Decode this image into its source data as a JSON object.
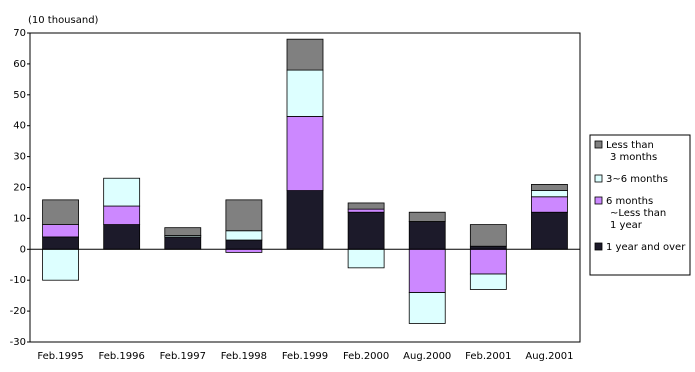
{
  "chart_data": {
    "type": "stacked-bar",
    "y_unit_label": "(10 thousand)",
    "categories": [
      "Feb.1995",
      "Feb.1996",
      "Feb.1997",
      "Feb.1998",
      "Feb.1999",
      "Feb.2000",
      "Aug.2000",
      "Feb.2001",
      "Aug.2001"
    ],
    "series": [
      {
        "name": "1 year and over",
        "color": "#1c1a2a",
        "values": [
          4,
          8,
          4,
          3,
          19,
          12,
          9,
          1,
          12
        ]
      },
      {
        "name": "6 months\n~Less than\n1 year",
        "color": "#cc88ff",
        "values": [
          4,
          6,
          0,
          -1,
          24,
          1,
          -14,
          -8,
          5
        ]
      },
      {
        "name": "3~6 months",
        "color": "#ddffff",
        "values": [
          -10,
          9,
          0.5,
          3,
          15,
          -6,
          -10,
          -5,
          2
        ]
      },
      {
        "name": "Less than\n3 months",
        "color": "#808080",
        "values": [
          8,
          0,
          2.5,
          10,
          10,
          2,
          3,
          7,
          2
        ]
      }
    ],
    "ylim": [
      -30,
      70
    ],
    "yticks": [
      -30,
      -20,
      -10,
      0,
      10,
      20,
      30,
      40,
      50,
      60,
      70
    ],
    "grid": false
  }
}
